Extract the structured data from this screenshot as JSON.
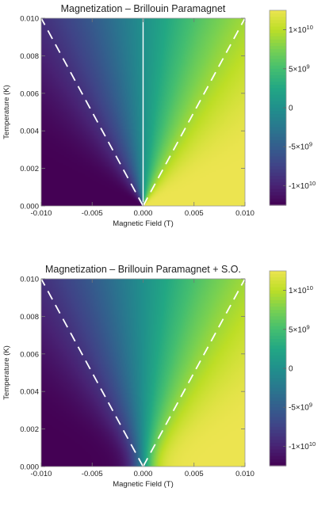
{
  "chart_data": [
    {
      "type": "heatmap",
      "title": "Magnetization – Brillouin Paramagnet",
      "xlabel": "Magnetic Field (T)",
      "ylabel": "Temperature (K)",
      "xlim": [
        -0.01,
        0.01
      ],
      "ylim": [
        0,
        0.01
      ],
      "x_ticks": [
        "-0.010",
        "-0.005",
        "0.000",
        "0.005",
        "0.010"
      ],
      "y_ticks": [
        "0.000",
        "0.002",
        "0.004",
        "0.006",
        "0.008",
        "0.010"
      ],
      "colorbar": {
        "range": [
          -12500000000.0,
          12500000000.0
        ],
        "ticks": [
          {
            "value": 10000000000.0,
            "mant": "1×10",
            "exp": "10"
          },
          {
            "value": 5000000000.0,
            "mant": "5×10",
            "exp": "9"
          },
          {
            "value": 0,
            "mant": "0",
            "exp": ""
          },
          {
            "value": -5000000000.0,
            "mant": "-5×10",
            "exp": "9"
          },
          {
            "value": -10000000000.0,
            "mant": "-1×10",
            "exp": "10"
          }
        ],
        "colormap": "viridis"
      },
      "dashed_lines": [
        {
          "from": [
            0,
            0
          ],
          "to": [
            -0.01,
            0.01
          ]
        },
        {
          "from": [
            0,
            0
          ],
          "to": [
            0.01,
            0.01
          ]
        }
      ],
      "zero_field_line": true,
      "model": "sharp"
    },
    {
      "type": "heatmap",
      "title": "Magnetization – Brillouin Paramagnet + S.O.",
      "xlabel": "Magnetic Field (T)",
      "ylabel": "Temperature (K)",
      "xlim": [
        -0.01,
        0.01
      ],
      "ylim": [
        0,
        0.01
      ],
      "x_ticks": [
        "-0.010",
        "-0.005",
        "0.000",
        "0.005",
        "0.010"
      ],
      "y_ticks": [
        "0.000",
        "0.002",
        "0.004",
        "0.006",
        "0.008",
        "0.010"
      ],
      "colorbar": {
        "range": [
          -12500000000.0,
          12500000000.0
        ],
        "ticks": [
          {
            "value": 10000000000.0,
            "mant": "1×10",
            "exp": "10"
          },
          {
            "value": 5000000000.0,
            "mant": "5×10",
            "exp": "9"
          },
          {
            "value": 0,
            "mant": "0",
            "exp": ""
          },
          {
            "value": -5000000000.0,
            "mant": "-5×10",
            "exp": "9"
          },
          {
            "value": -10000000000.0,
            "mant": "-1×10",
            "exp": "10"
          }
        ],
        "colormap": "viridis"
      },
      "dashed_lines": [
        {
          "from": [
            0,
            0
          ],
          "to": [
            -0.01,
            0.01
          ]
        },
        {
          "from": [
            0,
            0
          ],
          "to": [
            0.01,
            0.01
          ]
        }
      ],
      "zero_field_line": false,
      "model": "smooth"
    }
  ]
}
